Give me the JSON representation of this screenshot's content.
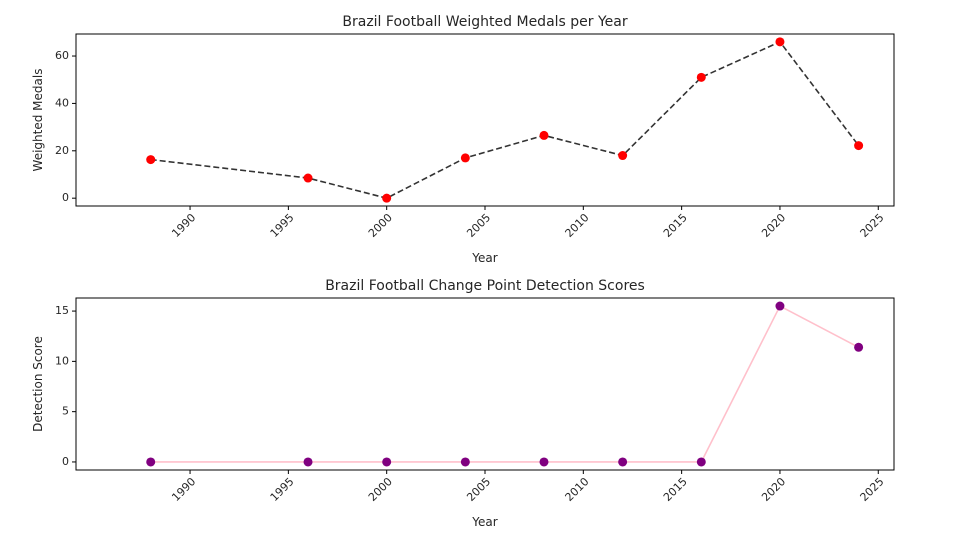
{
  "chart_data": [
    {
      "type": "line",
      "title": "Brazil Football Weighted Medals per Year",
      "xlabel": "Year",
      "ylabel": "Weighted Medals",
      "xlim": [
        1984.2,
        2025.8
      ],
      "ylim": [
        -3.3,
        69.3
      ],
      "x_ticks": [
        1990,
        1995,
        2000,
        2005,
        2010,
        2015,
        2020,
        2025
      ],
      "y_ticks": [
        0,
        20,
        40,
        60
      ],
      "grid": false,
      "legend": "none",
      "series": [
        {
          "x": [
            1988,
            1996,
            2000,
            2004,
            2008,
            2012,
            2016,
            2020,
            2024
          ],
          "y": [
            16.3,
            8.5,
            0,
            17,
            26.5,
            18,
            51,
            66,
            22.2
          ],
          "line_color": "#333333",
          "line_style": "dashed",
          "marker_color": "#ff0000"
        }
      ]
    },
    {
      "type": "line",
      "title": "Brazil Football Change Point Detection Scores",
      "xlabel": "Year",
      "ylabel": "Detection Score",
      "xlim": [
        1984.2,
        2025.8
      ],
      "ylim": [
        -0.8,
        16.3
      ],
      "x_ticks": [
        1990,
        1995,
        2000,
        2005,
        2010,
        2015,
        2020,
        2025
      ],
      "y_ticks": [
        0,
        5,
        10,
        15
      ],
      "grid": false,
      "legend": "none",
      "series": [
        {
          "x": [
            1988,
            1996,
            2000,
            2004,
            2008,
            2012,
            2016,
            2020,
            2024
          ],
          "y": [
            0,
            0,
            0,
            0,
            0,
            0,
            0,
            15.5,
            11.4
          ],
          "line_color": "#ffc0cb",
          "line_style": "solid",
          "marker_color": "#800080"
        }
      ]
    }
  ]
}
